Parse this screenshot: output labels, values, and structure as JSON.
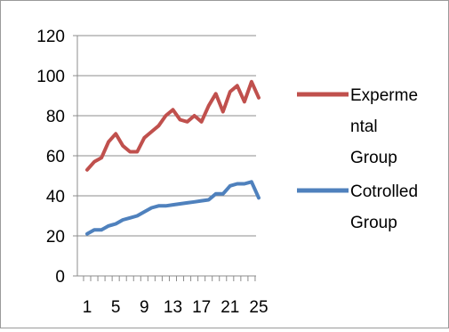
{
  "chart_data": {
    "type": "line",
    "x": [
      1,
      2,
      3,
      4,
      5,
      6,
      7,
      8,
      9,
      10,
      11,
      12,
      13,
      14,
      15,
      16,
      17,
      18,
      19,
      20,
      21,
      22,
      23,
      24,
      25
    ],
    "x_tick_labels": [
      "1",
      "5",
      "9",
      "13",
      "17",
      "21",
      "25"
    ],
    "x_tick_label_values": [
      1,
      5,
      9,
      13,
      17,
      21,
      25
    ],
    "y_tick_labels": [
      "0",
      "20",
      "40",
      "60",
      "80",
      "100",
      "120"
    ],
    "y_tick_label_values": [
      0,
      20,
      40,
      60,
      80,
      100,
      120
    ],
    "ylim": [
      0,
      120
    ],
    "grid": true,
    "legend_position": "right",
    "series": [
      {
        "name_lines": [
          "Experme",
          "ntal",
          "Group"
        ],
        "color": "#C0504D",
        "values": [
          53,
          57,
          59,
          67,
          71,
          65,
          62,
          62,
          69,
          72,
          75,
          80,
          83,
          78,
          77,
          80,
          77,
          85,
          91,
          82,
          92,
          95,
          87,
          97,
          89
        ]
      },
      {
        "name_lines": [
          "Cotrolled",
          "Group"
        ],
        "color": "#4F81BD",
        "values": [
          21,
          23,
          23,
          25,
          26,
          28,
          29,
          30,
          32,
          34,
          35,
          35,
          35.5,
          36,
          36.5,
          37,
          37.5,
          38,
          41,
          41,
          45,
          46,
          46,
          47,
          39
        ]
      }
    ]
  }
}
